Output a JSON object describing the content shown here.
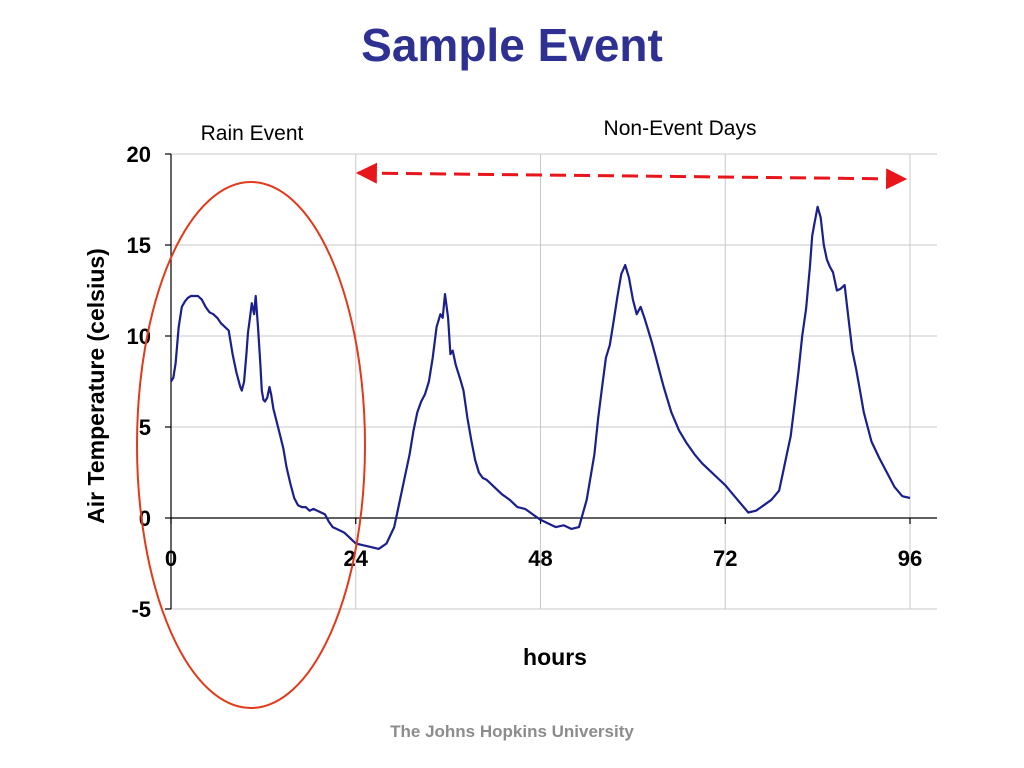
{
  "slide": {
    "title": "Sample Event",
    "footer": "The Johns Hopkins University"
  },
  "colors": {
    "title": "#2e3192",
    "series": "#1a1f8c",
    "highlight": "#e03a1a",
    "arrow": "#e8161b",
    "grid": "#c8c8c8",
    "footer": "#8c8c8c"
  },
  "chart_data": {
    "type": "line",
    "xlabel": "hours",
    "ylabel": "Air Temperature (celsius)",
    "xlim": [
      0,
      96
    ],
    "ylim": [
      -5,
      20
    ],
    "xticks": [
      0,
      24,
      48,
      72,
      96
    ],
    "yticks": [
      20,
      15,
      10,
      5,
      0,
      -5
    ],
    "grid": true,
    "series": [
      {
        "x": [
          0,
          0.3,
          0.6,
          1,
          1.4,
          1.8,
          2.2,
          2.6,
          3,
          3.5,
          4,
          4.5,
          5,
          5.5,
          6,
          6.5,
          7,
          7.5,
          8,
          8.5,
          9,
          9.2,
          9.5,
          9.8,
          10,
          10.2,
          10.5,
          10.8,
          11,
          11.3,
          11.6,
          11.8,
          12,
          12.2,
          12.5,
          12.8,
          13,
          13.3,
          13.6,
          13.9,
          14.2,
          14.6,
          15,
          15.5,
          16,
          16.5,
          17,
          17.5,
          18,
          18.5,
          19,
          19.5,
          20,
          20.5,
          21,
          21.5,
          22,
          22.5,
          23,
          23.5,
          24,
          25,
          26,
          27,
          28,
          29,
          30,
          31,
          31.5,
          32,
          32.5,
          33,
          33.5,
          34,
          34.5,
          35,
          35.3,
          35.6,
          36,
          36.3,
          36.6,
          37,
          37.3,
          37.6,
          38,
          38.5,
          39,
          39.5,
          40,
          40.5,
          41,
          41.5,
          42,
          43,
          44,
          45,
          46,
          47,
          48,
          49,
          50,
          51,
          52,
          53,
          54,
          55,
          55.5,
          56,
          56.5,
          57,
          57.5,
          58,
          58.5,
          59,
          59.5,
          60,
          60.5,
          61,
          61.5,
          62,
          62.5,
          63,
          63.5,
          64,
          65,
          66,
          67,
          68,
          69,
          70,
          71,
          72,
          73,
          74,
          75,
          76,
          77,
          78,
          79,
          79.5,
          80,
          80.5,
          81,
          81.5,
          82,
          82.5,
          83,
          83.3,
          83.6,
          84,
          84.4,
          84.8,
          85.2,
          85.6,
          86,
          86.5,
          87,
          87.5,
          88,
          88.5,
          89,
          89.5,
          90,
          91,
          92,
          93,
          94,
          95,
          96
        ],
        "y": [
          7.5,
          7.7,
          8.5,
          10.5,
          11.6,
          11.9,
          12.1,
          12.2,
          12.2,
          12.2,
          12.0,
          11.6,
          11.3,
          11.2,
          11.0,
          10.7,
          10.5,
          10.3,
          9.0,
          8.0,
          7.2,
          7.0,
          7.5,
          9.0,
          10.2,
          10.8,
          11.8,
          11.2,
          12.2,
          10.5,
          8.5,
          7.0,
          6.5,
          6.4,
          6.6,
          7.2,
          6.8,
          6.0,
          5.5,
          5.0,
          4.5,
          3.8,
          2.8,
          1.9,
          1.1,
          0.7,
          0.6,
          0.6,
          0.4,
          0.5,
          0.4,
          0.3,
          0.2,
          -0.2,
          -0.5,
          -0.6,
          -0.7,
          -0.8,
          -1.0,
          -1.2,
          -1.4,
          -1.5,
          -1.6,
          -1.7,
          -1.4,
          -0.5,
          1.5,
          3.5,
          4.8,
          5.8,
          6.4,
          6.8,
          7.5,
          8.8,
          10.5,
          11.2,
          11.0,
          12.3,
          11.0,
          9.0,
          9.2,
          8.4,
          8.0,
          7.6,
          7.0,
          5.5,
          4.3,
          3.2,
          2.5,
          2.2,
          2.1,
          1.9,
          1.7,
          1.3,
          1.0,
          0.6,
          0.5,
          0.2,
          -0.1,
          -0.3,
          -0.5,
          -0.4,
          -0.6,
          -0.5,
          1.0,
          3.5,
          5.5,
          7.2,
          8.8,
          9.5,
          10.8,
          12.2,
          13.4,
          13.9,
          13.2,
          12.0,
          11.2,
          11.6,
          11.0,
          10.3,
          9.6,
          8.8,
          8.0,
          7.2,
          5.8,
          4.8,
          4.1,
          3.5,
          3.0,
          2.6,
          2.2,
          1.8,
          1.3,
          0.8,
          0.3,
          0.4,
          0.7,
          1.0,
          1.5,
          2.5,
          3.5,
          4.5,
          6.2,
          8.0,
          10.0,
          11.5,
          13.8,
          15.5,
          16.2,
          17.1,
          16.5,
          15.0,
          14.2,
          13.8,
          13.5,
          12.5,
          12.6,
          12.8,
          11.0,
          9.2,
          8.2,
          7.0,
          5.8,
          4.2,
          3.3,
          2.5,
          1.7,
          1.2,
          1.1
        ]
      }
    ],
    "annotations": {
      "rain_event_label": "Rain Event",
      "non_event_label": "Non-Event Days",
      "non_event_span_hours": [
        24,
        96
      ]
    }
  }
}
